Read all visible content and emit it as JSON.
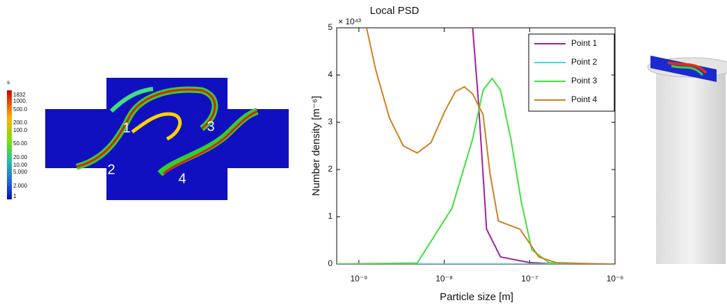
{
  "chart_data": {
    "type": "line",
    "title": "Local PSD",
    "x_label": "Particle size [m]",
    "y_label": "Number density [m⁻⁶]",
    "y_multiplier": "× 10⁴³",
    "xscale": "log",
    "xlim": [
      5.5e-10,
      1e-06
    ],
    "ylim": [
      0,
      5
    ],
    "xticks": [
      {
        "value": 1e-09,
        "label": "10⁻⁹"
      },
      {
        "value": 1e-08,
        "label": "10⁻⁸"
      },
      {
        "value": 1e-07,
        "label": "10⁻⁷"
      },
      {
        "value": 1e-06,
        "label": "10⁻⁶"
      }
    ],
    "yticks": [
      0,
      1,
      2,
      3,
      4,
      5
    ],
    "legend": "upper right",
    "series": [
      {
        "name": "Point 1",
        "color": "#a020a0",
        "x": [
          2.15e-08,
          2.5e-08,
          3.13e-08,
          4.56e-08,
          1e-07,
          2.04e-07,
          9.1e-07
        ],
        "values": [
          5,
          3.5,
          0.74,
          0.15,
          0.03,
          0,
          0
        ]
      },
      {
        "name": "Point 2",
        "color": "#40dcdc",
        "x": [
          5.5e-10,
          1e-08,
          1e-07,
          9.1e-07
        ],
        "values": [
          0,
          0,
          0,
          0
        ]
      },
      {
        "name": "Point 3",
        "color": "#40e040",
        "x": [
          5.5e-10,
          4.82e-09,
          1.23e-08,
          2.15e-08,
          2.85e-08,
          3.64e-08,
          4.56e-08,
          6.03e-08,
          7.98e-08,
          1.06e-07,
          1.69e-07,
          2.96e-07,
          9.1e-07
        ],
        "values": [
          0,
          0.02,
          1.18,
          2.65,
          3.68,
          3.93,
          3.68,
          2.65,
          1.32,
          0.3,
          0.03,
          0,
          0
        ]
      },
      {
        "name": "Point 4",
        "color": "#d08020",
        "x": [
          1.23e-09,
          1.57e-09,
          2.28e-09,
          3.31e-09,
          4.82e-09,
          7.01e-09,
          1.02e-08,
          1.35e-08,
          1.72e-08,
          2.15e-08,
          2.85e-08,
          3.44e-08,
          4.31e-08,
          6.03e-08,
          7.69e-08,
          1e-07,
          1.28e-07,
          2.04e-07,
          4.31e-07,
          9.1e-07
        ],
        "values": [
          5,
          4.12,
          3.09,
          2.5,
          2.35,
          2.57,
          3.24,
          3.65,
          3.75,
          3.6,
          3.16,
          1.91,
          0.91,
          0.81,
          0.74,
          0.44,
          0.15,
          0.03,
          0.01,
          0
        ]
      }
    ]
  },
  "contour": {
    "colorbar_title": "s",
    "colorbar_labels": [
      "1832",
      "1000.",
      "500.0",
      "200.0",
      "100.0",
      "50.00",
      "20.00",
      "10.00",
      "5.000",
      "2.000",
      "1"
    ],
    "point_labels": [
      "1",
      "2",
      "3",
      "4"
    ]
  }
}
